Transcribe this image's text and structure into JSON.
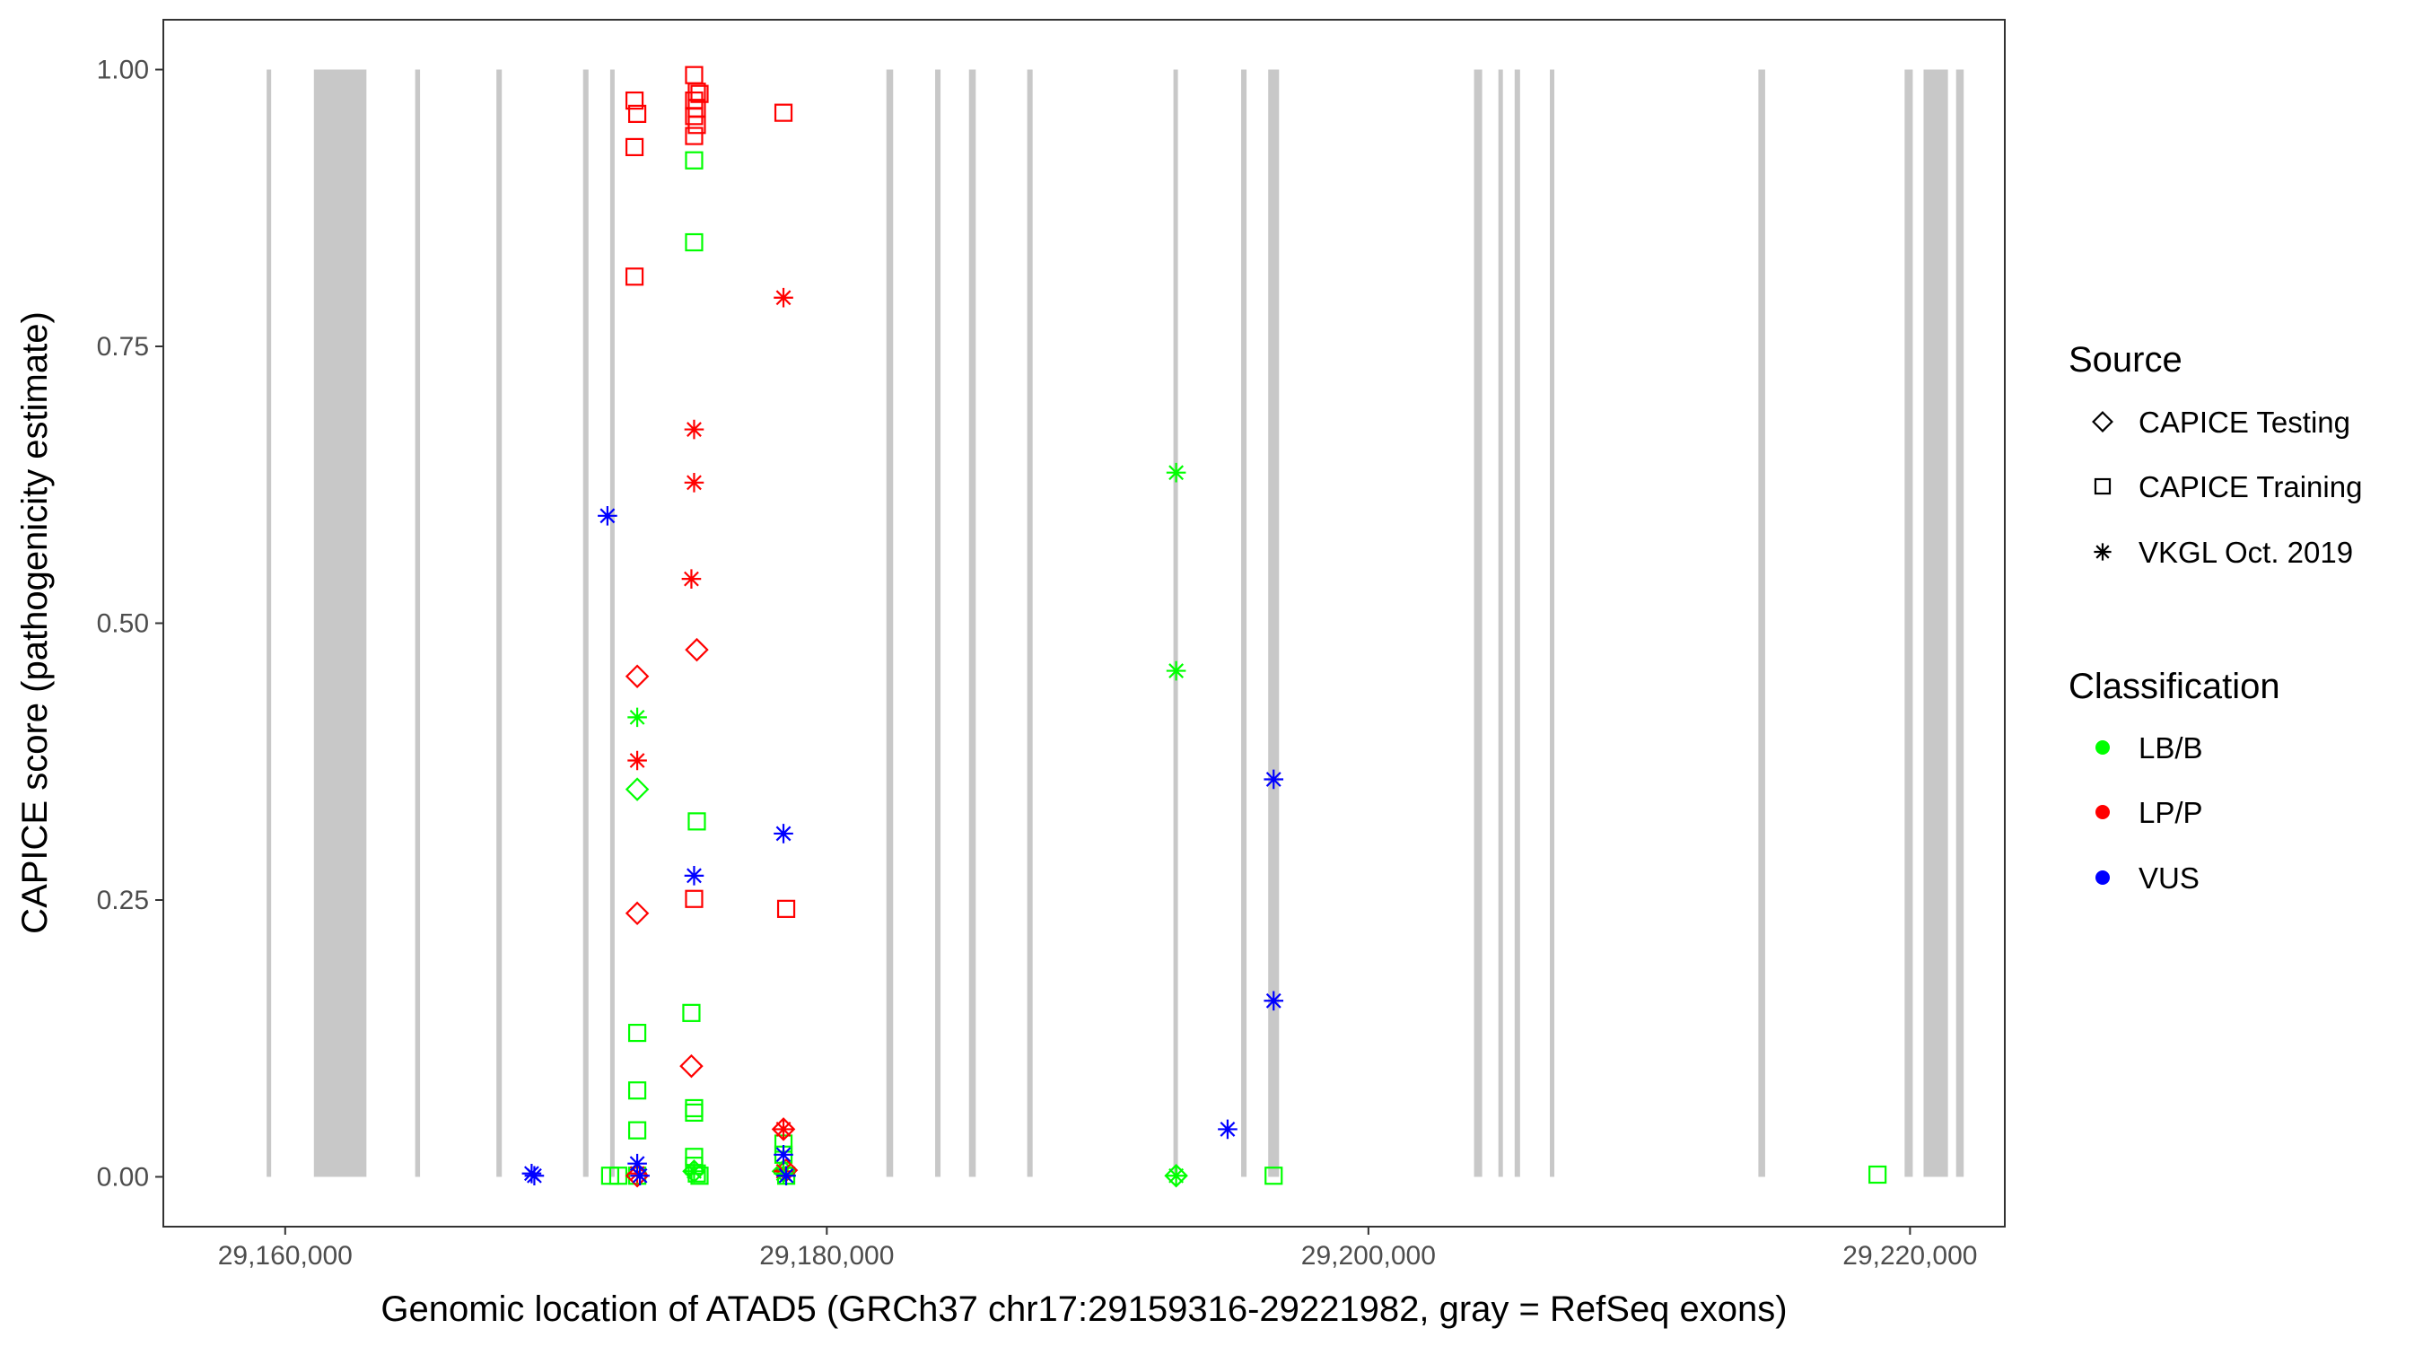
{
  "chart_data": {
    "type": "scatter",
    "xlabel": "Genomic location of ATAD5 (GRCh37 chr17:29159316-29221982, gray = RefSeq exons)",
    "ylabel": "CAPICE score (pathogenicity estimate)",
    "xlim": [
      29155500,
      29223500
    ],
    "ylim": [
      -0.045,
      1.045
    ],
    "xticks": [
      29160000,
      29180000,
      29200000,
      29220000
    ],
    "xtick_labels": [
      "29,160,000",
      "29,180,000",
      "29,200,000",
      "29,220,000"
    ],
    "yticks": [
      0,
      0.25,
      0.5,
      0.75,
      1
    ],
    "ytick_labels": [
      "0.00",
      "0.25",
      "0.50",
      "0.75",
      "1.00"
    ],
    "grid": false,
    "exon_color": "#c8c8c8",
    "exons": [
      [
        29159316,
        29159420
      ],
      [
        29161060,
        29163000
      ],
      [
        29164800,
        29164980
      ],
      [
        29167800,
        29168000
      ],
      [
        29171000,
        29171200
      ],
      [
        29172000,
        29172150
      ],
      [
        29182200,
        29182450
      ],
      [
        29184000,
        29184200
      ],
      [
        29185250,
        29185500
      ],
      [
        29187400,
        29187600
      ],
      [
        29192800,
        29192950
      ],
      [
        29195300,
        29195500
      ],
      [
        29196300,
        29196700
      ],
      [
        29203900,
        29204200
      ],
      [
        29204800,
        29204950
      ],
      [
        29205400,
        29205600
      ],
      [
        29206700,
        29206850
      ],
      [
        29214400,
        29214650
      ],
      [
        29219800,
        29220100
      ],
      [
        29220500,
        29221400
      ],
      [
        29221700,
        29221982
      ]
    ],
    "legend": {
      "position": "right",
      "source_title": "Source",
      "source_items": [
        {
          "label": "CAPICE Testing",
          "shape": "diamond"
        },
        {
          "label": "CAPICE Training",
          "shape": "square"
        },
        {
          "label": "VKGL Oct. 2019",
          "shape": "asterisk"
        }
      ],
      "class_title": "Classification",
      "class_items": [
        {
          "label": "LB/B",
          "color": "#00ff00"
        },
        {
          "label": "LP/P",
          "color": "#ff0000"
        },
        {
          "label": "VUS",
          "color": "#0000ff"
        }
      ]
    },
    "series": [
      {
        "source": "CAPICE Training",
        "classification": "LP/P",
        "points": [
          [
            29172900,
            0.972
          ],
          [
            29173000,
            0.96
          ],
          [
            29172900,
            0.93
          ],
          [
            29172900,
            0.813
          ],
          [
            29175100,
            0.995
          ],
          [
            29175200,
            0.98
          ],
          [
            29175300,
            0.978
          ],
          [
            29175100,
            0.972
          ],
          [
            29175200,
            0.965
          ],
          [
            29175100,
            0.958
          ],
          [
            29175200,
            0.95
          ],
          [
            29175100,
            0.94
          ],
          [
            29178400,
            0.961
          ],
          [
            29175100,
            0.251
          ],
          [
            29178500,
            0.242
          ]
        ]
      },
      {
        "source": "CAPICE Training",
        "classification": "LB/B",
        "points": [
          [
            29175100,
            0.918
          ],
          [
            29175100,
            0.844
          ],
          [
            29175200,
            0.321
          ],
          [
            29175000,
            0.148
          ],
          [
            29173000,
            0.13
          ],
          [
            29173000,
            0.078
          ],
          [
            29175100,
            0.062
          ],
          [
            29175100,
            0.058
          ],
          [
            29173000,
            0.042
          ],
          [
            29175100,
            0.018
          ],
          [
            29175100,
            0.01
          ],
          [
            29175200,
            0.003
          ],
          [
            29175300,
            0.001
          ],
          [
            29172000,
            0.001
          ],
          [
            29172300,
            0.001
          ],
          [
            29173000,
            0.001
          ],
          [
            29178400,
            0.03
          ],
          [
            29178400,
            0.02
          ],
          [
            29178500,
            0.001
          ],
          [
            29196500,
            0.001
          ],
          [
            29218800,
            0.002
          ]
        ]
      },
      {
        "source": "CAPICE Testing",
        "classification": "LP/P",
        "points": [
          [
            29173000,
            0.452
          ],
          [
            29175200,
            0.476
          ],
          [
            29173000,
            0.238
          ],
          [
            29175000,
            0.1
          ],
          [
            29178400,
            0.043
          ],
          [
            29178500,
            0.006
          ],
          [
            29173000,
            0.001
          ]
        ]
      },
      {
        "source": "CAPICE Testing",
        "classification": "LB/B",
        "points": [
          [
            29173000,
            0.35
          ],
          [
            29175100,
            0.005
          ],
          [
            29178400,
            0.005
          ],
          [
            29192900,
            0.001
          ]
        ]
      },
      {
        "source": "VKGL Oct. 2019",
        "classification": "LP/P",
        "points": [
          [
            29178400,
            0.794
          ],
          [
            29175100,
            0.675
          ],
          [
            29175100,
            0.627
          ],
          [
            29175000,
            0.54
          ],
          [
            29173000,
            0.376
          ],
          [
            29178400,
            0.043
          ],
          [
            29178400,
            0.005
          ],
          [
            29173000,
            0.003
          ]
        ]
      },
      {
        "source": "VKGL Oct. 2019",
        "classification": "LB/B",
        "points": [
          [
            29192900,
            0.636
          ],
          [
            29192900,
            0.457
          ],
          [
            29173000,
            0.415
          ],
          [
            29192900,
            0.001
          ],
          [
            29175100,
            0.005
          ],
          [
            29178400,
            0.003
          ]
        ]
      },
      {
        "source": "VKGL Oct. 2019",
        "classification": "VUS",
        "points": [
          [
            29171900,
            0.597
          ],
          [
            29196500,
            0.359
          ],
          [
            29178400,
            0.31
          ],
          [
            29175100,
            0.272
          ],
          [
            29196500,
            0.159
          ],
          [
            29194800,
            0.043
          ],
          [
            29178400,
            0.02
          ],
          [
            29173000,
            0.012
          ],
          [
            29169100,
            0.003
          ],
          [
            29169200,
            0.001
          ],
          [
            29173100,
            0.001
          ],
          [
            29178500,
            0.001
          ]
        ]
      }
    ]
  }
}
